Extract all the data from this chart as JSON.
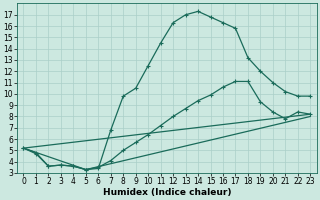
{
  "bg_color": "#cce8e0",
  "line_color": "#1a6b5a",
  "grid_color": "#aacfc8",
  "xlabel": "Humidex (Indice chaleur)",
  "ylim": [
    3,
    18
  ],
  "xlim": [
    -0.5,
    23.5
  ],
  "yticks": [
    3,
    4,
    5,
    6,
    7,
    8,
    9,
    10,
    11,
    12,
    13,
    14,
    15,
    16,
    17
  ],
  "xticks": [
    0,
    1,
    2,
    3,
    4,
    5,
    6,
    7,
    8,
    9,
    10,
    11,
    12,
    13,
    14,
    15,
    16,
    17,
    18,
    19,
    20,
    21,
    22,
    23
  ],
  "line1_x": [
    0,
    1,
    2,
    3,
    4,
    5,
    6,
    7,
    8,
    9,
    10,
    11,
    12,
    13,
    14,
    15,
    16,
    17,
    18,
    19,
    20,
    21,
    22,
    23
  ],
  "line1_y": [
    5.2,
    4.8,
    3.6,
    3.7,
    3.6,
    3.3,
    3.4,
    6.8,
    9.8,
    10.5,
    12.5,
    14.5,
    16.3,
    17.0,
    17.3,
    16.8,
    16.3,
    15.8,
    13.2,
    12.0,
    11.0,
    10.2,
    9.8,
    9.8
  ],
  "line2_x": [
    0,
    1,
    2,
    3,
    4,
    5,
    6,
    7,
    8,
    9,
    10,
    11,
    12,
    13,
    14,
    15,
    16,
    17,
    18,
    19,
    20,
    21,
    22,
    23
  ],
  "line2_y": [
    5.2,
    4.7,
    3.6,
    3.7,
    3.6,
    3.3,
    3.5,
    4.1,
    5.0,
    5.7,
    6.4,
    7.2,
    8.0,
    8.7,
    9.4,
    9.9,
    10.6,
    11.1,
    11.1,
    9.3,
    8.4,
    7.8,
    8.4,
    8.2
  ],
  "line3_x": [
    0,
    23
  ],
  "line3_y": [
    5.2,
    8.2
  ],
  "line4_x": [
    0,
    5,
    23
  ],
  "line4_y": [
    5.2,
    3.3,
    8.0
  ],
  "marker": "+",
  "markersize": 3,
  "linewidth": 0.9,
  "tick_fontsize": 5.5,
  "xlabel_fontsize": 6.5
}
